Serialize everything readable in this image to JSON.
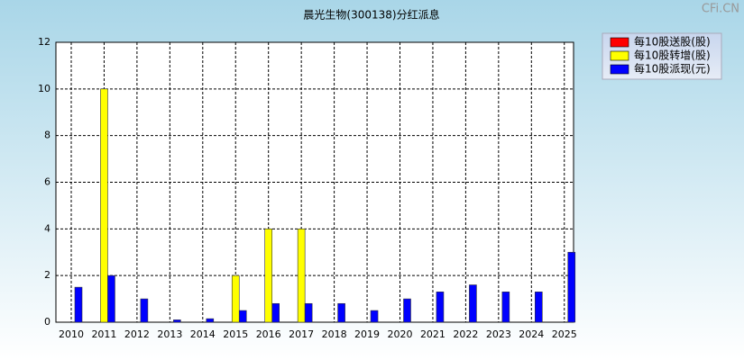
{
  "chart_data": {
    "type": "bar",
    "title": "晨光生物(300138)分红派息",
    "watermark": "CFi.CN",
    "categories": [
      "2010",
      "2011",
      "2012",
      "2013",
      "2014",
      "2015",
      "2016",
      "2017",
      "2018",
      "2019",
      "2020",
      "2021",
      "2022",
      "2023",
      "2024",
      "2025"
    ],
    "series": [
      {
        "name": "每10股送股(股)",
        "color": "#ff0000",
        "values": [
          0,
          0,
          0,
          0,
          0,
          0,
          0,
          0,
          0,
          0,
          0,
          0,
          0,
          0,
          0,
          0
        ]
      },
      {
        "name": "每10股转增(股)",
        "color": "#ffff00",
        "values": [
          0,
          10,
          0,
          0,
          0,
          2,
          4,
          4,
          0,
          0,
          0,
          0,
          0,
          0,
          0,
          0
        ]
      },
      {
        "name": "每10股派现(元)",
        "color": "#0000ff",
        "values": [
          1.5,
          2,
          1,
          0.1,
          0.15,
          0.5,
          0.8,
          0.8,
          0.8,
          0.5,
          1,
          1.3,
          1.6,
          1.3,
          1.3,
          3
        ]
      }
    ],
    "ylim": [
      0,
      12
    ],
    "yticks": [
      0,
      2,
      4,
      6,
      8,
      10,
      12
    ],
    "grid": true,
    "legend": "top-right"
  }
}
